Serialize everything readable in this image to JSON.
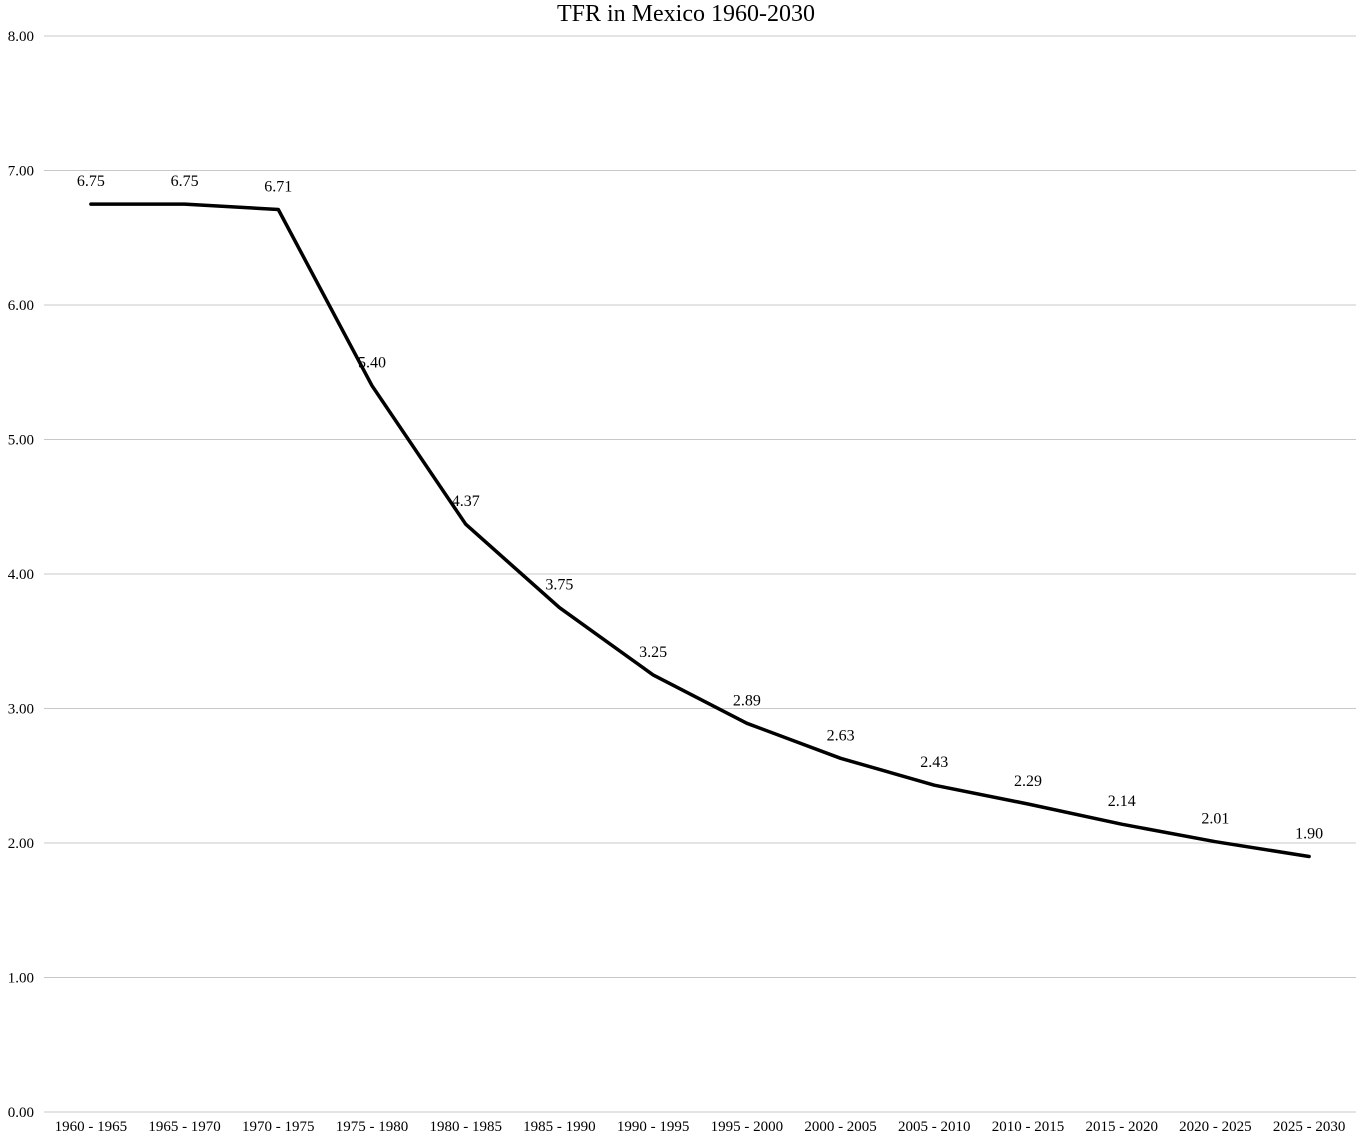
{
  "chart_data": {
    "type": "line",
    "title": "TFR in Mexico 1960-2030",
    "xlabel": "",
    "ylabel": "",
    "ylim": [
      0,
      8
    ],
    "yticks": [
      "0.00",
      "1.00",
      "2.00",
      "3.00",
      "4.00",
      "5.00",
      "6.00",
      "7.00",
      "8.00"
    ],
    "grid": "horizontal",
    "legend": "none",
    "line_color": "#000000",
    "categories": [
      "1960 - 1965",
      "1965 - 1970",
      "1970 - 1975",
      "1975 - 1980",
      "1980 - 1985",
      "1985 - 1990",
      "1990 - 1995",
      "1995 - 2000",
      "2000 - 2005",
      "2005 - 2010",
      "2010 - 2015",
      "2015 - 2020",
      "2020 - 2025",
      "2025 - 2030"
    ],
    "values": [
      6.75,
      6.75,
      6.71,
      5.4,
      4.37,
      3.75,
      3.25,
      2.89,
      2.63,
      2.43,
      2.29,
      2.14,
      2.01,
      1.9
    ],
    "data_labels": [
      "6.75",
      "6.75",
      "6.71",
      "5.40",
      "4.37",
      "3.75",
      "3.25",
      "2.89",
      "2.63",
      "2.43",
      "2.29",
      "2.14",
      "2.01",
      "1.90"
    ]
  }
}
